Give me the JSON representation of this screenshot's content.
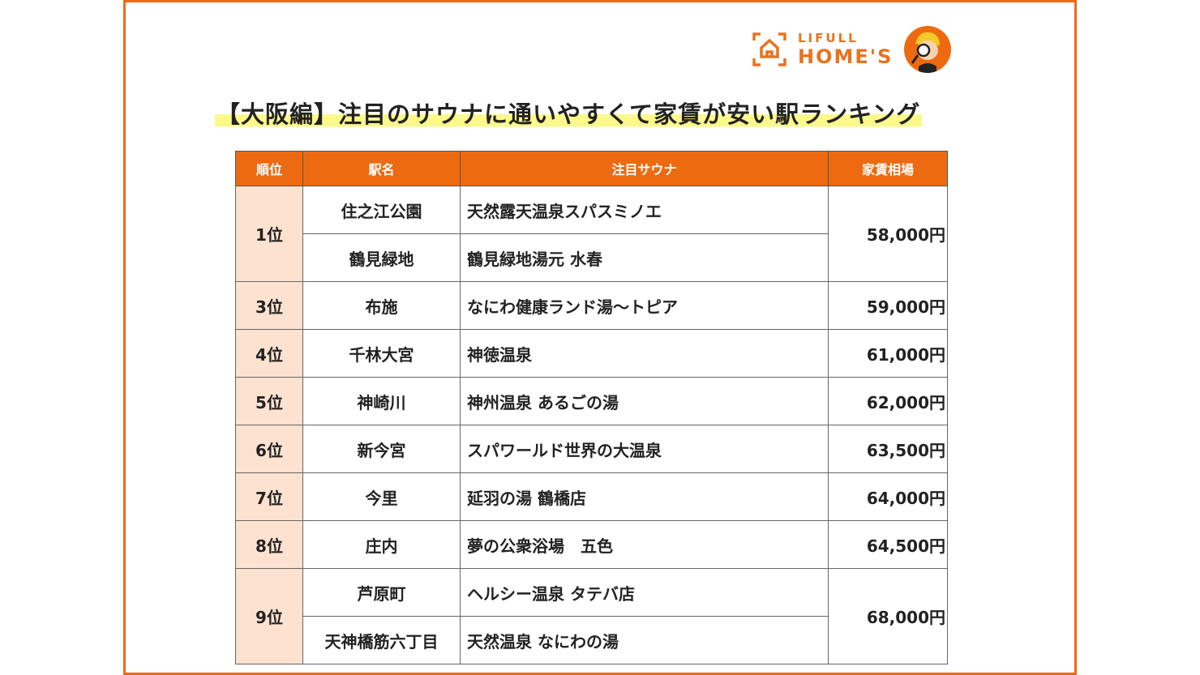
{
  "brand": {
    "line1": "LIFULL",
    "line2": "HOME'S",
    "accent": "#ee6a10"
  },
  "title": "【大阪編】注目のサウナに通いやすくて家賃が安い駅ランキング",
  "table": {
    "headers": [
      "順位",
      "駅名",
      "注目サウナ",
      "家賃相場"
    ],
    "rows": [
      {
        "rank": "1位",
        "rent": "58,000円",
        "items": [
          {
            "station": "住之江公園",
            "sauna": "天然露天温泉スパスミノエ"
          },
          {
            "station": "鶴見緑地",
            "sauna": "鶴見緑地湯元 水春"
          }
        ]
      },
      {
        "rank": "3位",
        "rent": "59,000円",
        "items": [
          {
            "station": "布施",
            "sauna": "なにわ健康ランド湯～トピア"
          }
        ]
      },
      {
        "rank": "4位",
        "rent": "61,000円",
        "items": [
          {
            "station": "千林大宮",
            "sauna": "神徳温泉"
          }
        ]
      },
      {
        "rank": "5位",
        "rent": "62,000円",
        "items": [
          {
            "station": "神崎川",
            "sauna": "神州温泉 あるごの湯"
          }
        ]
      },
      {
        "rank": "6位",
        "rent": "63,500円",
        "items": [
          {
            "station": "新今宮",
            "sauna": "スパワールド世界の大温泉"
          }
        ]
      },
      {
        "rank": "7位",
        "rent": "64,000円",
        "items": [
          {
            "station": "今里",
            "sauna": "延羽の湯 鶴橋店"
          }
        ]
      },
      {
        "rank": "8位",
        "rent": "64,500円",
        "items": [
          {
            "station": "庄内",
            "sauna": "夢の公衆浴場　五色"
          }
        ]
      },
      {
        "rank": "9位",
        "rent": "68,000円",
        "items": [
          {
            "station": "芦原町",
            "sauna": "ヘルシー温泉 タテバ店"
          },
          {
            "station": "天神橋筋六丁目",
            "sauna": "天然温泉 なにわの湯"
          }
        ]
      }
    ]
  }
}
